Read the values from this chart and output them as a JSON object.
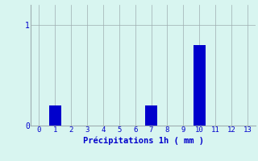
{
  "hours": [
    0,
    1,
    2,
    3,
    4,
    5,
    6,
    7,
    8,
    9,
    10,
    11,
    12,
    13
  ],
  "values": [
    0,
    0.2,
    0,
    0,
    0,
    0,
    0,
    0.2,
    0,
    0,
    0.8,
    0,
    0,
    0
  ],
  "bar_color": "#0000cc",
  "background_color": "#d8f5f0",
  "grid_color": "#9eadb0",
  "xlabel": "Précipitations 1h ( mm )",
  "xlabel_color": "#0000cc",
  "tick_color": "#0000cc",
  "yticks": [
    0,
    1
  ],
  "ylim": [
    0,
    1.2
  ],
  "xlim": [
    -0.5,
    13.5
  ],
  "bar_width": 0.75,
  "tick_fontsize": 6.5,
  "xlabel_fontsize": 7.5
}
